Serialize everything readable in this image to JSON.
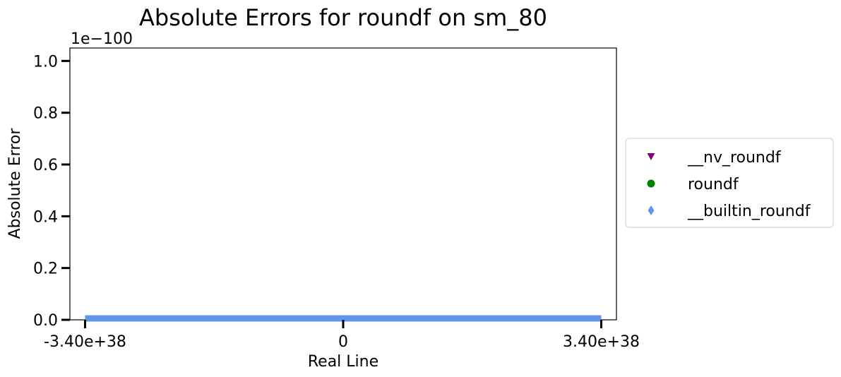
{
  "chart_data": {
    "type": "scatter",
    "title": "Absolute Errors for roundf on sm_80",
    "xlabel": "Real Line",
    "ylabel": "Absolute Error",
    "y_offset_label": "1e−100",
    "xlim": [
      -3.6e+38,
      3.6e+38
    ],
    "ylim": [
      0,
      1.05
    ],
    "x_ticks": [
      {
        "value": -3.4e+38,
        "label": "-3.40e+38"
      },
      {
        "value": 0,
        "label": "0"
      },
      {
        "value": 3.4e+38,
        "label": "3.40e+38"
      }
    ],
    "y_ticks": [
      {
        "value": 0.0,
        "label": "0.0"
      },
      {
        "value": 0.2,
        "label": "0.2"
      },
      {
        "value": 0.4,
        "label": "0.4"
      },
      {
        "value": 0.6,
        "label": "0.6"
      },
      {
        "value": 0.8,
        "label": "0.8"
      },
      {
        "value": 1.0,
        "label": "1.0"
      }
    ],
    "x_range": [
      -3.4e+38,
      3.4e+38
    ],
    "grid": false,
    "legend_position": "outside-right",
    "series": [
      {
        "name": "__nv_roundf",
        "marker": "triangle-down",
        "color": "#800080",
        "y": 0
      },
      {
        "name": "roundf",
        "marker": "circle",
        "color": "#008000",
        "y": 0
      },
      {
        "name": "__builtin_roundf",
        "marker": "diamond",
        "color": "#6495ED",
        "y": 0
      }
    ]
  }
}
